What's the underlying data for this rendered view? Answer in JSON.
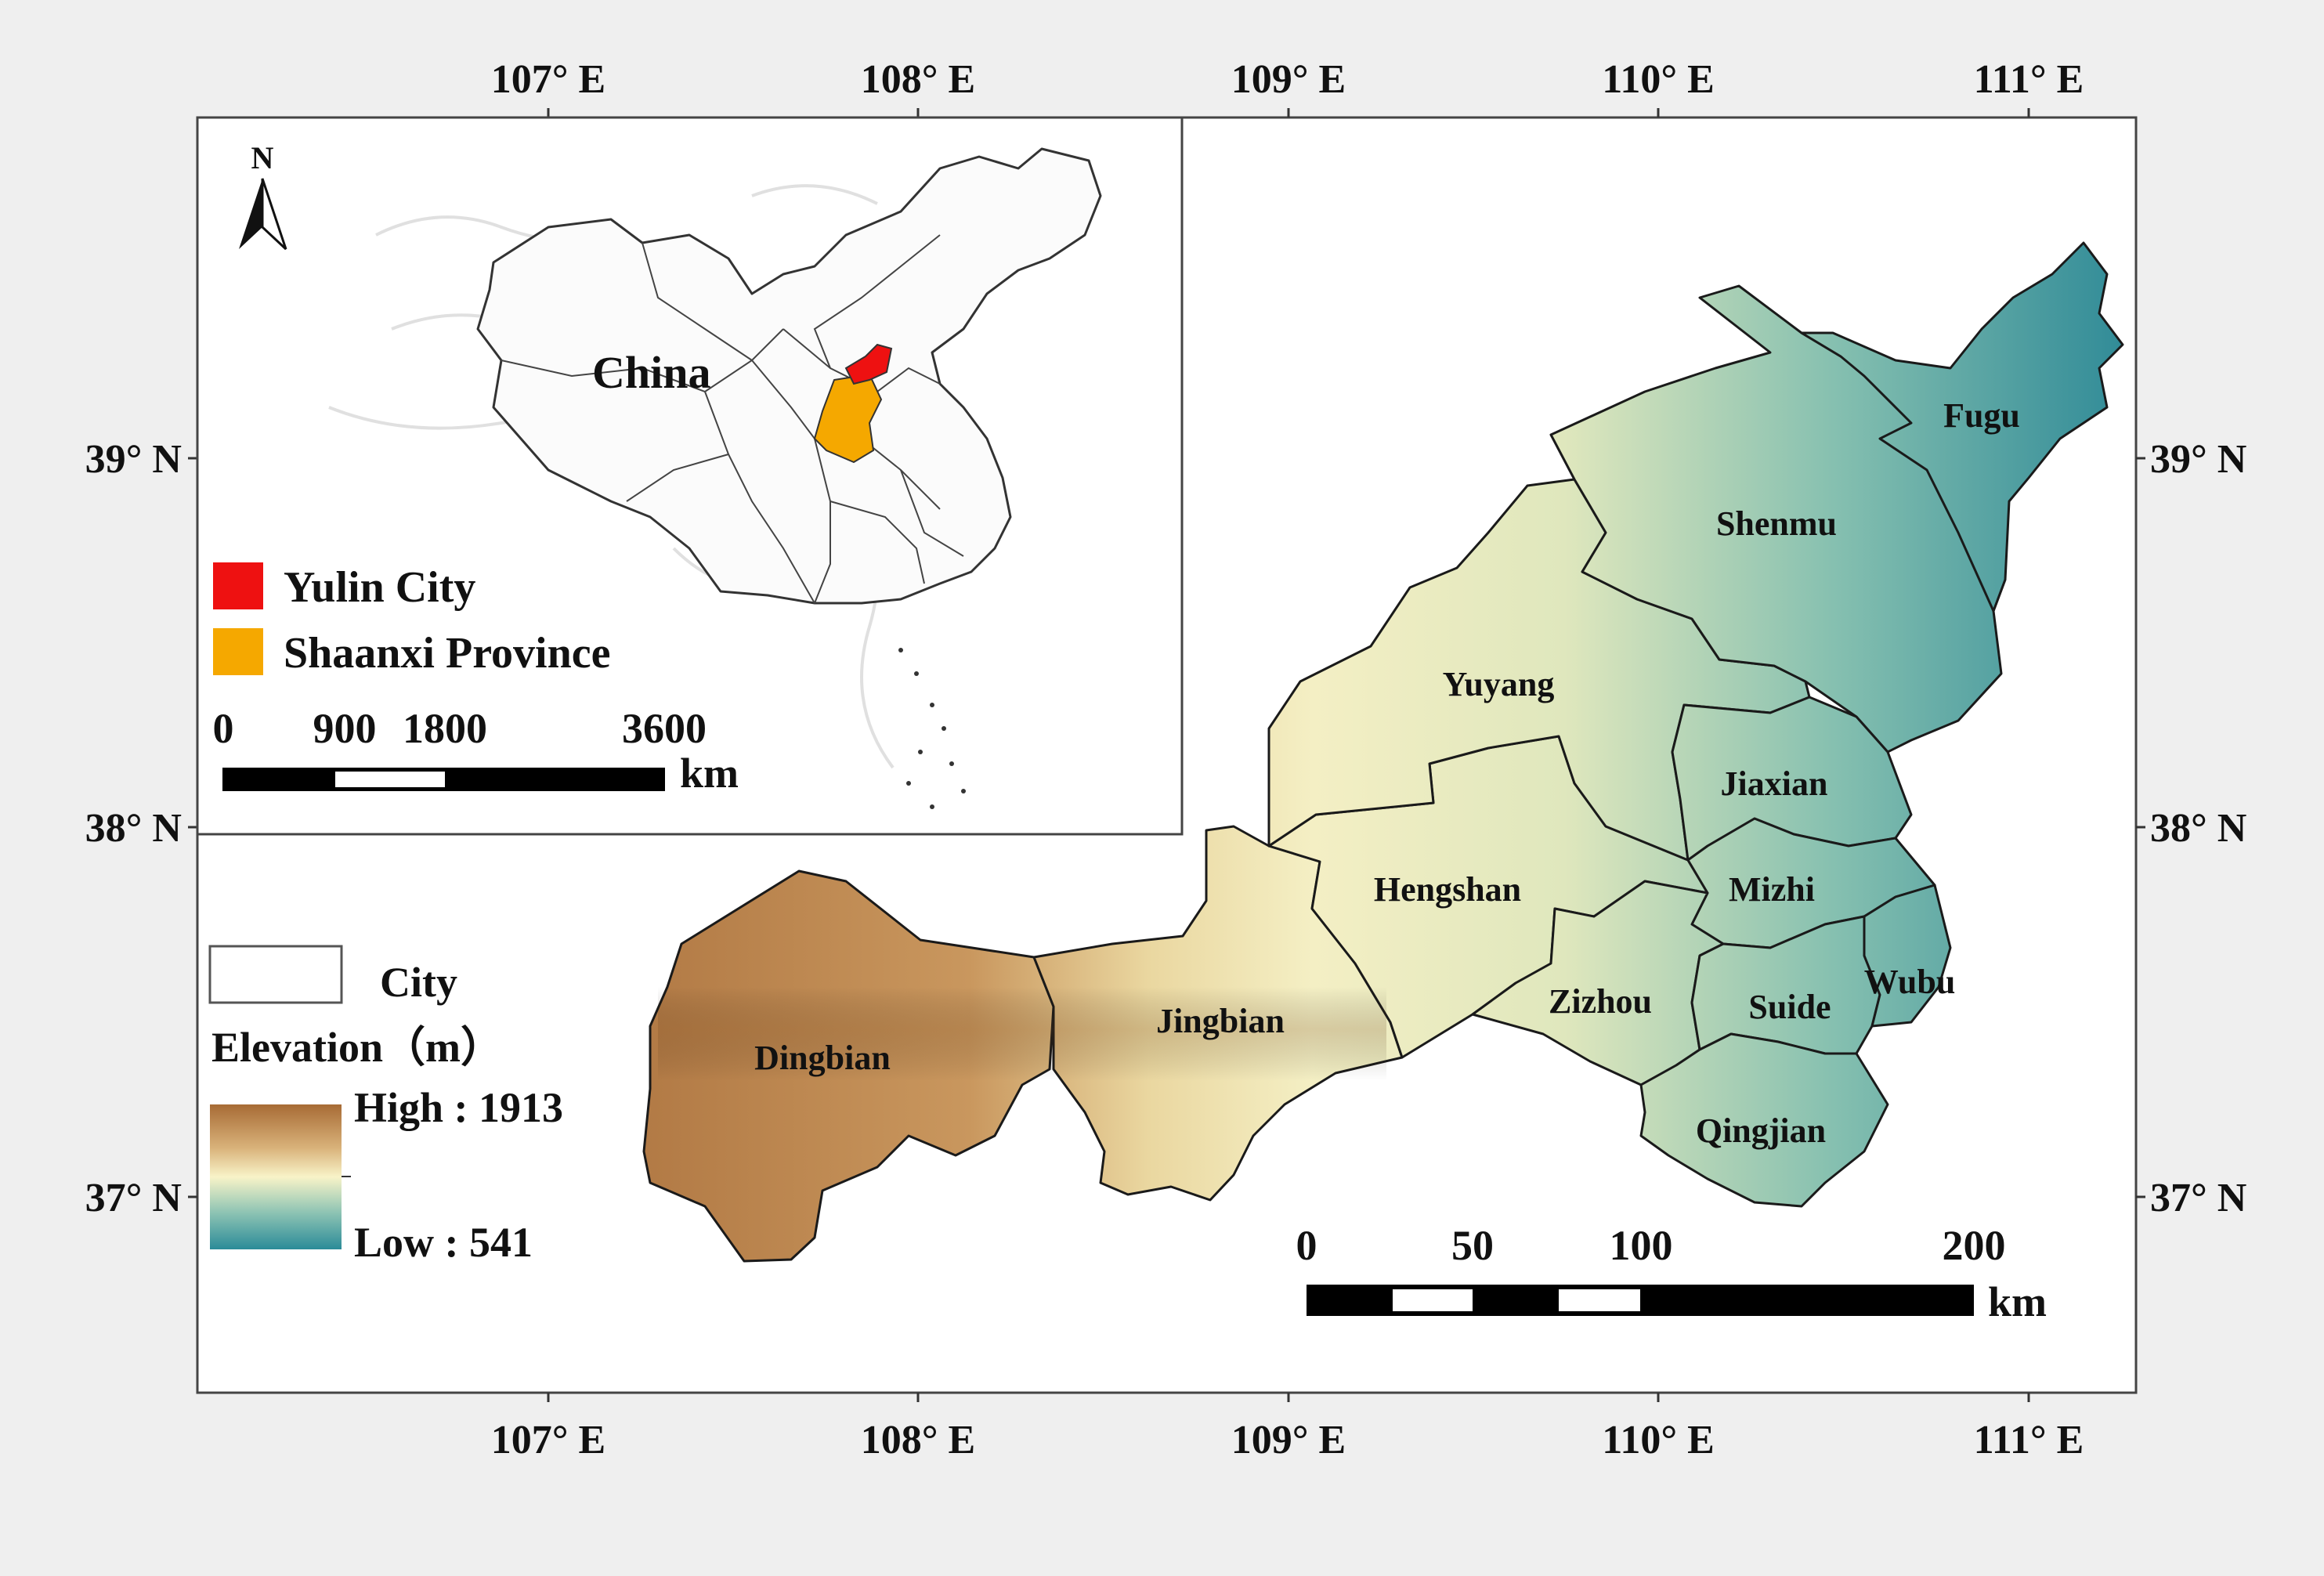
{
  "graticule": {
    "longitudes": [
      "107° E",
      "108° E",
      "109° E",
      "110° E",
      "111° E"
    ],
    "latitudes": [
      "39° N",
      "38° N",
      "37° N"
    ]
  },
  "north_arrow": {
    "label": "N",
    "icon": "north-arrow-icon"
  },
  "inset": {
    "country_label": "China",
    "legend": [
      {
        "label": "Yulin City",
        "color": "#ee1111"
      },
      {
        "label": "Shaanxi Province",
        "color": "#f5a800"
      }
    ],
    "scale": {
      "ticks": [
        "0",
        "900",
        "1800",
        "3600"
      ],
      "unit": "km"
    }
  },
  "legend": {
    "city_label": "City",
    "elevation_title": "Elevation（m）",
    "high_label": "High : 1913",
    "low_label": "Low : 541",
    "ramp_colors": [
      "#a76b35",
      "#d9b27a",
      "#f8f3c8",
      "#8cc3b3",
      "#2b8b98"
    ]
  },
  "scale_bar": {
    "ticks": [
      "0",
      "50",
      "100",
      "200"
    ],
    "unit": "km"
  },
  "counties": [
    {
      "name": "Fugu"
    },
    {
      "name": "Shenmu"
    },
    {
      "name": "Yuyang"
    },
    {
      "name": "Jiaxian"
    },
    {
      "name": "Hengshan"
    },
    {
      "name": "Mizhi"
    },
    {
      "name": "Dingbian"
    },
    {
      "name": "Jingbian"
    },
    {
      "name": "Wubu"
    },
    {
      "name": "Zizhou"
    },
    {
      "name": "Suide"
    },
    {
      "name": "Qingjian"
    }
  ]
}
